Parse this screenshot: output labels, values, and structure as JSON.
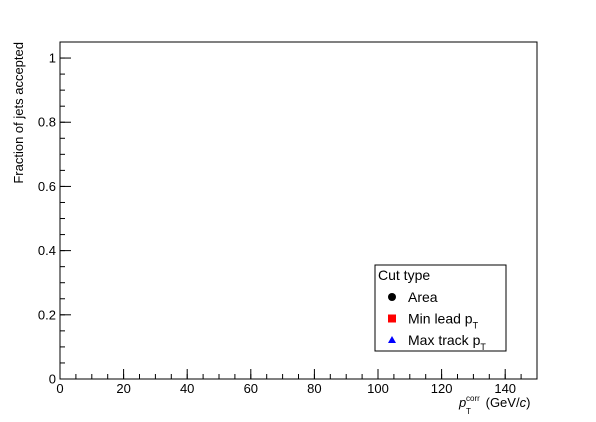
{
  "chart_data": {
    "type": "scatter",
    "title": "",
    "ylabel": "Fraction of jets accepted",
    "xlabel": {
      "symbol": "p",
      "sub": "T",
      "sup": "corr",
      "unit_prefix": " (GeV/",
      "unit_italic": "c",
      "unit_suffix": ")"
    },
    "xlim": [
      0,
      150
    ],
    "ylim": [
      0,
      1.05
    ],
    "x_ticks": [
      0,
      20,
      40,
      60,
      80,
      100,
      120,
      140
    ],
    "x_minor_step": 5,
    "y_ticks": [
      0,
      0.2,
      0.4,
      0.6,
      0.8,
      1
    ],
    "y_tick_labels": [
      "0",
      "0.2",
      "0.4",
      "0.6",
      "0.8",
      "1"
    ],
    "y_minor_step": 0.05,
    "grid": false,
    "legend": {
      "placement": "bottom-right",
      "title": "Cut type",
      "entries": [
        {
          "label": "Area",
          "sub": "",
          "marker": "circle",
          "color": "#000000"
        },
        {
          "label": "Min lead p",
          "sub": "T",
          "marker": "square",
          "color": "#ff0000"
        },
        {
          "label": "Max track p",
          "sub": "T",
          "marker": "triangle",
          "color": "#0000ff"
        }
      ]
    },
    "series": [
      {
        "name": "Area",
        "marker": "circle",
        "color": "#000000",
        "points": []
      },
      {
        "name": "Min lead pT",
        "marker": "square",
        "color": "#ff0000",
        "points": []
      },
      {
        "name": "Max track pT",
        "marker": "triangle",
        "color": "#0000ff",
        "points": []
      }
    ]
  }
}
